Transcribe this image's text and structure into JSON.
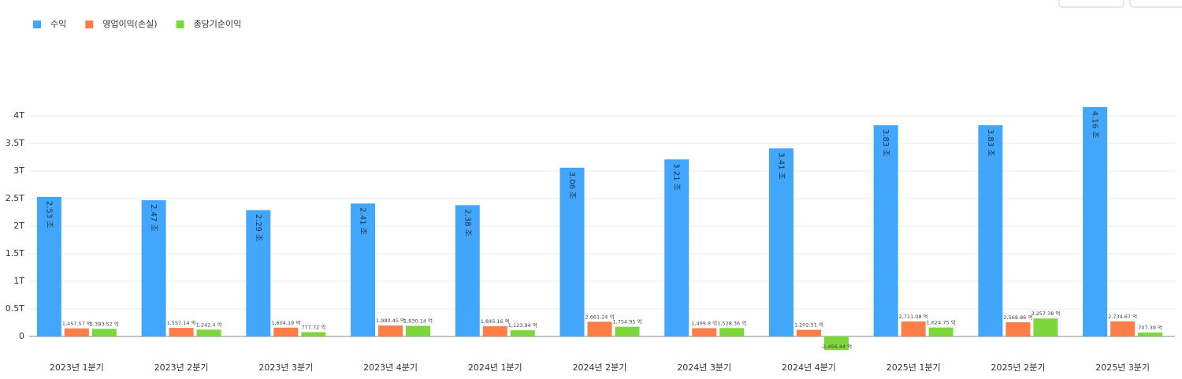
{
  "chart_data": {
    "type": "bar",
    "categories": [
      "2023년 1분기",
      "2023년 2분기",
      "2023년 3분기",
      "2023년 4분기",
      "2024년 1분기",
      "2024년 2분기",
      "2024년 3분기",
      "2024년 4분기",
      "2025년 1분기",
      "2025년 2분기",
      "2025년 3분기"
    ],
    "series": [
      {
        "name": "수익",
        "color": "#42a7fc",
        "values": [
          2.53,
          2.47,
          2.29,
          2.41,
          2.38,
          3.06,
          3.21,
          3.41,
          3.83,
          3.83,
          4.16
        ],
        "value_labels": [
          "2.53 조",
          "2.47 조",
          "2.29 조",
          "2.41 조",
          "2.38 조",
          "3.06 조",
          "3.21 조",
          "3.41 조",
          "3.83 조",
          "3.83 조",
          "4.16 조"
        ]
      },
      {
        "name": "영업이익(손실)",
        "color": "#ff7d47",
        "values": [
          0.145757,
          0.155714,
          0.160419,
          0.198045,
          0.184516,
          0.266124,
          0.14998,
          0.120251,
          0.271108,
          0.256886,
          0.273467
        ],
        "value_labels": [
          "1,457.57 억",
          "1,557.14 억",
          "1,604.19 억",
          "1,980.45 억",
          "1,845.16 억",
          "2,661.24 억",
          "1,499.8 억",
          "1,202.51 억",
          "2,711.08 억",
          "2,568.86 억",
          "2,734.67 억"
        ]
      },
      {
        "name": "총당기순이익",
        "color": "#7dd63b",
        "values": [
          0.138352,
          0.12424,
          0.077772,
          0.193014,
          0.112394,
          0.175495,
          0.152836,
          -0.245644,
          0.162475,
          0.325738,
          0.070739
        ],
        "value_labels": [
          "1,383.52 억",
          "1,242.4 억",
          "777.72 억",
          "1,930.14 억",
          "1,123.94 억",
          "1,754.95 억",
          "1,528.36 억",
          "-2,456.44 억",
          "1,624.75 억",
          "3,257.38 억",
          "707.39 억"
        ]
      }
    ],
    "ylim": [
      -0.25,
      4.5
    ],
    "yticks": [
      0,
      {
        "value": 0.5,
        "label": "0.5T"
      },
      {
        "value": 1,
        "label": "1T"
      },
      {
        "value": 1.5,
        "label": "1.5T"
      },
      {
        "value": 2,
        "label": "2T"
      },
      {
        "value": 2.5,
        "label": "2.5T"
      },
      {
        "value": 3,
        "label": "3T"
      },
      {
        "value": 3.5,
        "label": "3.5T"
      },
      {
        "value": 4,
        "label": "4T"
      }
    ],
    "grid": true,
    "legend": "top-left"
  }
}
